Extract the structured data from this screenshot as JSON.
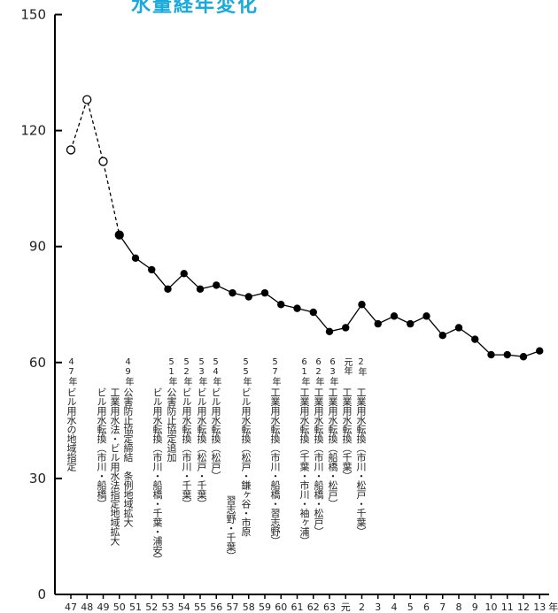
{
  "chart_data": {
    "type": "line",
    "title": "水量経年変化",
    "xlabel": "",
    "ylabel": "",
    "ylim": [
      0,
      150
    ],
    "yticks": [
      0,
      30,
      60,
      90,
      120,
      150
    ],
    "x_unit": "年",
    "x": [
      "47",
      "48",
      "49",
      "50",
      "51",
      "52",
      "53",
      "54",
      "55",
      "56",
      "57",
      "58",
      "59",
      "60",
      "61",
      "62",
      "63",
      "元",
      "2",
      "3",
      "4",
      "5",
      "6",
      "7",
      "8",
      "9",
      "10",
      "11",
      "12",
      "13"
    ],
    "series": [
      {
        "name": "",
        "style": "dashed-open",
        "values": [
          115,
          128,
          112,
          93,
          null,
          null,
          null,
          null,
          null,
          null,
          null,
          null,
          null,
          null,
          null,
          null,
          null,
          null,
          null,
          null,
          null,
          null,
          null,
          null,
          null,
          null,
          null,
          null,
          null,
          null
        ]
      },
      {
        "name": "",
        "style": "solid-filled",
        "values": [
          null,
          null,
          null,
          93,
          87,
          84,
          79,
          83,
          79,
          80,
          78,
          77,
          78,
          75,
          74,
          73,
          68,
          69,
          75,
          70,
          72,
          70,
          72,
          67,
          69,
          66,
          62,
          62,
          61.5,
          63
        ]
      }
    ],
    "annotations": [
      {
        "year": "47年",
        "lines": [
          "ビル用水の地域指定"
        ]
      },
      {
        "year": "49年",
        "lines": [
          "公害防止協定締結　条例地域拡大",
          "工業用水法・ビル用水法指定地域拡大",
          "ビル用水転換（市川・船橋）"
        ]
      },
      {
        "year": "51年",
        "lines": [
          "公害防止協定追加",
          "ビル用水転換（市川・船橋・千葉・浦安）"
        ]
      },
      {
        "year": "52年",
        "lines": [
          "ビル用水転換（市川・千葉）"
        ]
      },
      {
        "year": "53年",
        "lines": [
          "ビル用水転換（松戸・千葉）"
        ]
      },
      {
        "year": "54年",
        "lines": [
          "ビル用水転換（松戸）"
        ]
      },
      {
        "year": "55年",
        "lines": [
          "ビル用水転換（松戸・鎌ヶ谷・市原",
          "習志野・千葉）"
        ]
      },
      {
        "year": "57年",
        "lines": [
          "工業用水転換（市川・船橋・習志野）"
        ]
      },
      {
        "year": "61年",
        "lines": [
          "工業用水転換（千葉・市川・袖ヶ浦）"
        ]
      },
      {
        "year": "62年",
        "lines": [
          "工業用水転換（市川・船橋・松戸）"
        ]
      },
      {
        "year": "63年",
        "lines": [
          "工業用水転換（船橋・松戸）"
        ]
      },
      {
        "year": "元年",
        "lines": [
          "工業用水転換（千葉）"
        ]
      },
      {
        "year": "2年",
        "lines": [
          "工業用水転換（市川・松戸・千葉）"
        ]
      }
    ]
  }
}
